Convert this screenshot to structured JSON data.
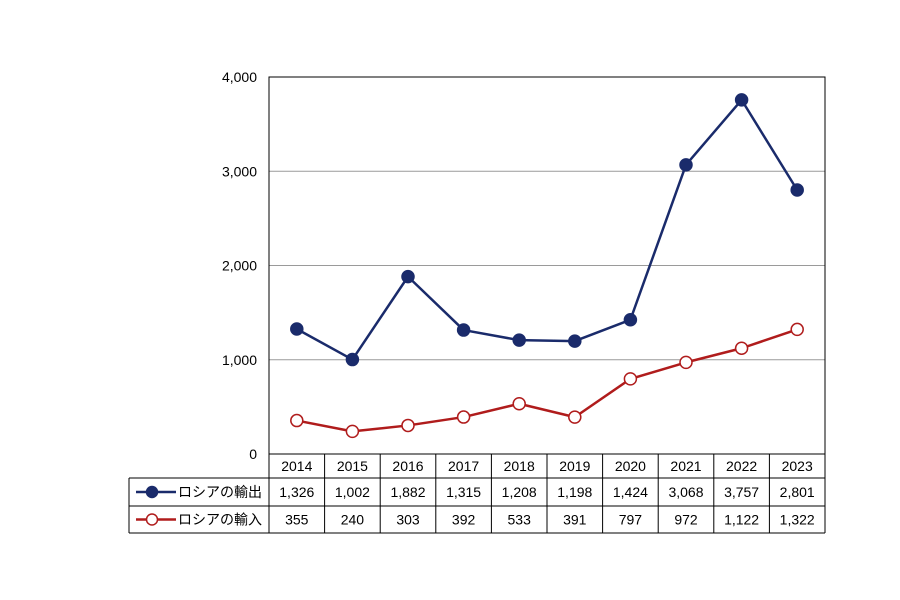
{
  "chart_data": {
    "type": "line",
    "title": "",
    "xlabel": "",
    "ylabel": "",
    "categories": [
      "2014",
      "2015",
      "2016",
      "2017",
      "2018",
      "2019",
      "2020",
      "2021",
      "2022",
      "2023"
    ],
    "ylim": [
      0,
      4000
    ],
    "yticks": [
      0,
      1000,
      2000,
      3000,
      4000
    ],
    "ytick_labels": [
      "0",
      "1,000",
      "2,000",
      "3,000",
      "4,000"
    ],
    "grid": true,
    "legend": "data-table",
    "series": [
      {
        "name": "ロシアの輸出",
        "values": [
          1326,
          1002,
          1882,
          1315,
          1208,
          1198,
          1424,
          3068,
          3757,
          2801
        ],
        "value_labels": [
          "1,326",
          "1,002",
          "1,882",
          "1,315",
          "1,208",
          "1,198",
          "1,424",
          "3,068",
          "3,757",
          "2,801"
        ],
        "color": "#1a2b6b",
        "marker": "filled-circle"
      },
      {
        "name": "ロシアの輸入",
        "values": [
          355,
          240,
          303,
          392,
          533,
          391,
          797,
          972,
          1122,
          1322
        ],
        "value_labels": [
          "355",
          "240",
          "303",
          "392",
          "533",
          "391",
          "797",
          "972",
          "1,122",
          "1,322"
        ],
        "color": "#b01c1c",
        "marker": "hollow-circle"
      }
    ]
  }
}
